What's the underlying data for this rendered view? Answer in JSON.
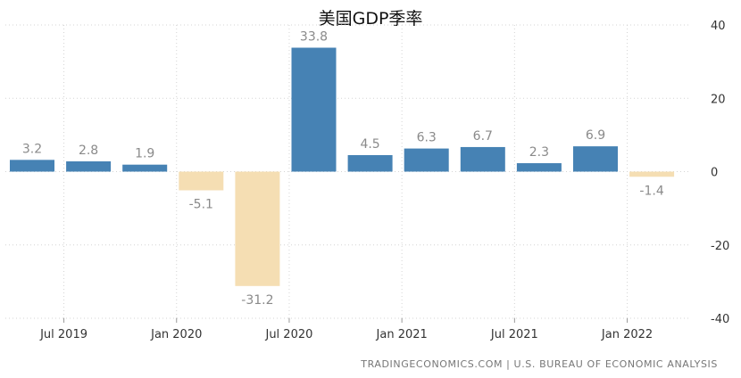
{
  "chart_data": {
    "type": "bar",
    "title": "美国GDP季率",
    "categories": [
      "2019Q2",
      "2019Q3",
      "2019Q4",
      "2020Q1",
      "2020Q2",
      "2020Q3",
      "2020Q4",
      "2021Q1",
      "2021Q2",
      "2021Q3",
      "2021Q4",
      "2022Q1"
    ],
    "values": [
      3.2,
      2.8,
      1.9,
      -5.1,
      -31.2,
      33.8,
      4.5,
      6.3,
      6.7,
      2.3,
      6.9,
      -1.4
    ],
    "value_labels": [
      "3.2",
      "2.8",
      "1.9",
      "-5.1",
      "-31.2",
      "33.8",
      "4.5",
      "6.3",
      "6.7",
      "2.3",
      "6.9",
      "-1.4"
    ],
    "x_tick_labels": [
      {
        "label": "Jul 2019",
        "at_index": 0.5
      },
      {
        "label": "Jan 2020",
        "at_index": 2.5
      },
      {
        "label": "Jul 2020",
        "at_index": 4.5
      },
      {
        "label": "Jan 2021",
        "at_index": 6.5
      },
      {
        "label": "Jul 2021",
        "at_index": 8.5
      },
      {
        "label": "Jan 2022",
        "at_index": 10.5
      }
    ],
    "y_ticks": [
      40,
      20,
      0,
      -20,
      -40
    ],
    "y_tick_labels": [
      "40",
      "20",
      "0",
      "-20",
      "-40"
    ],
    "ylim": [
      -40,
      40
    ],
    "y_axis_position": "right",
    "grid": true,
    "colors": {
      "positive": "#4682b4",
      "negative": "#f5deb3",
      "label": "#8a8a8a",
      "grid": "#d4d4d4"
    }
  },
  "source": "TRADINGECONOMICS.COM  |  U.S. BUREAU OF ECONOMIC ANALYSIS"
}
